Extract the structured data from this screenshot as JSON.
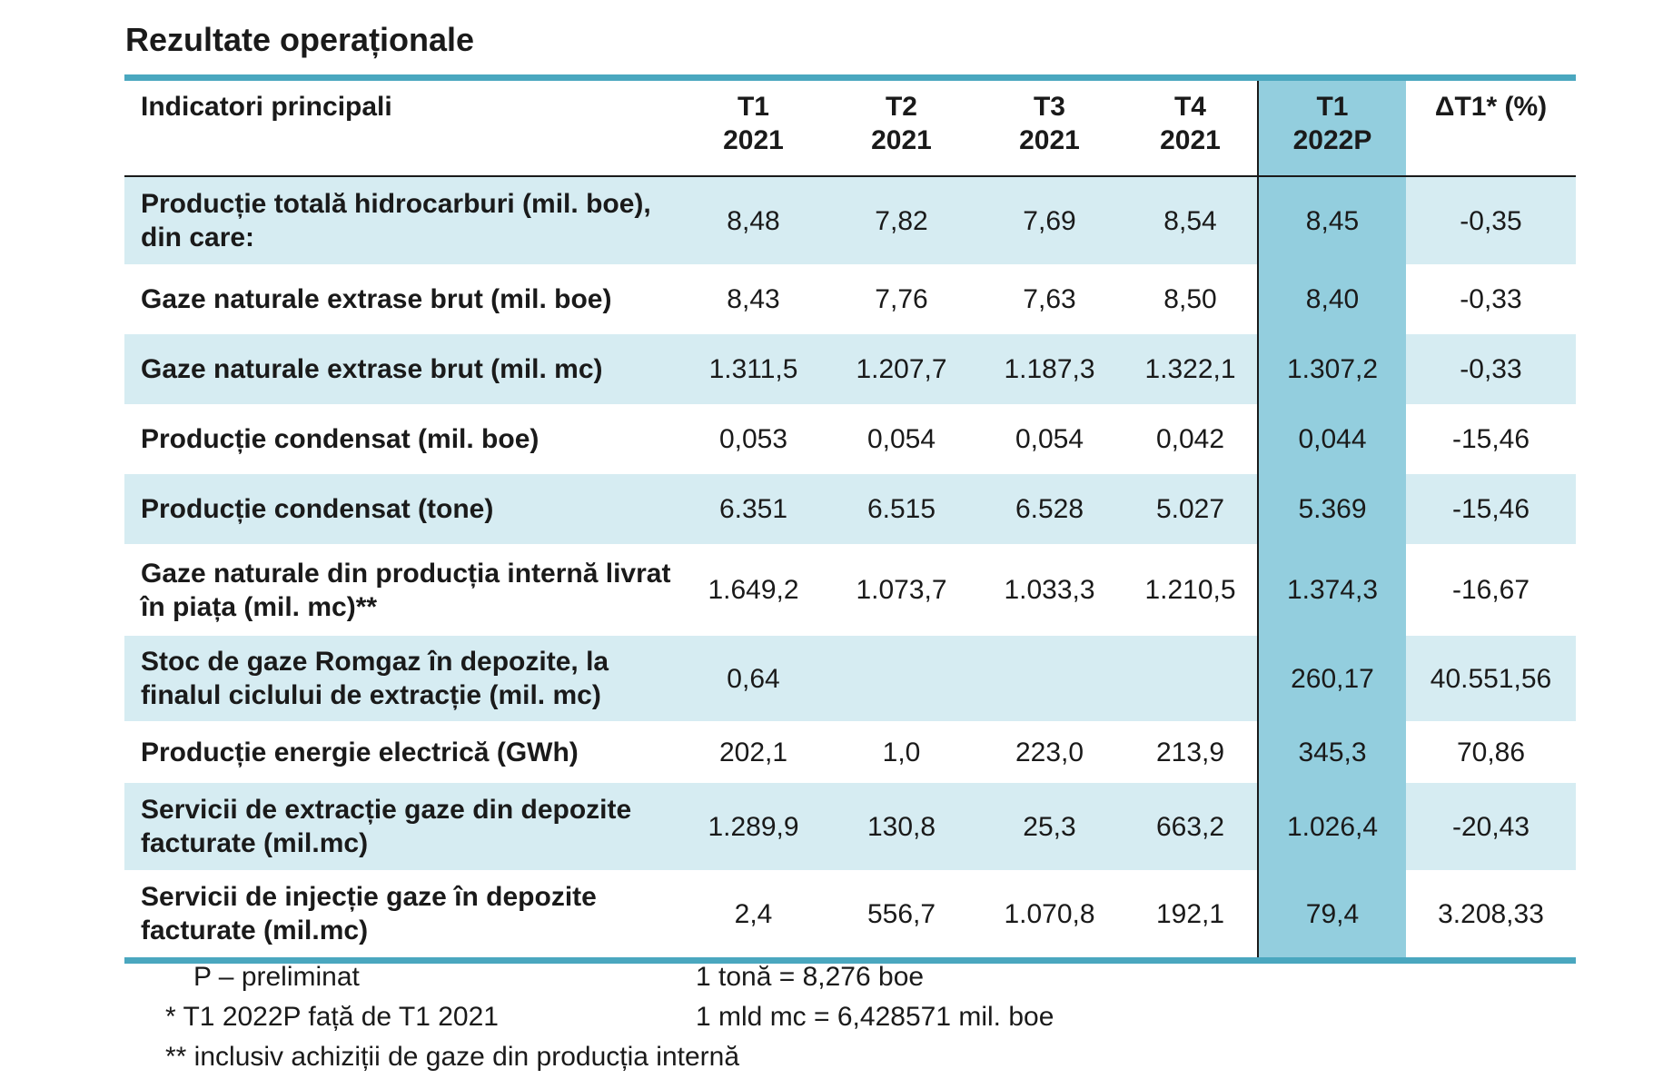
{
  "title": "Rezultate operaționale",
  "table": {
    "header": {
      "label": "Indicatori principali",
      "columns": [
        {
          "line1": "T1",
          "line2": "2021"
        },
        {
          "line1": "T2",
          "line2": "2021"
        },
        {
          "line1": "T3",
          "line2": "2021"
        },
        {
          "line1": "T4",
          "line2": "2021"
        },
        {
          "line1": "T1",
          "line2": "2022P"
        },
        {
          "line1": "ΔT1* (%)",
          "line2": ""
        }
      ]
    },
    "rows": [
      {
        "label": "Producție totală hidrocarburi (mil. boe), din care:",
        "values": [
          "8,48",
          "7,82",
          "7,69",
          "8,54",
          "8,45",
          "-0,35"
        ]
      },
      {
        "label": "Gaze naturale extrase brut (mil. boe)",
        "values": [
          "8,43",
          "7,76",
          "7,63",
          "8,50",
          "8,40",
          "-0,33"
        ]
      },
      {
        "label": "Gaze naturale extrase brut (mil. mc)",
        "values": [
          "1.311,5",
          "1.207,7",
          "1.187,3",
          "1.322,1",
          "1.307,2",
          "-0,33"
        ]
      },
      {
        "label": "Producție condensat (mil. boe)",
        "values": [
          "0,053",
          "0,054",
          "0,054",
          "0,042",
          "0,044",
          "-15,46"
        ]
      },
      {
        "label": "Producție condensat (tone)",
        "values": [
          "6.351",
          "6.515",
          "6.528",
          "5.027",
          "5.369",
          "-15,46"
        ]
      },
      {
        "label": "Gaze naturale din producția internă livrat în piața (mil. mc)**",
        "values": [
          "1.649,2",
          "1.073,7",
          "1.033,3",
          "1.210,5",
          "1.374,3",
          "-16,67"
        ]
      },
      {
        "label": "Stoc de gaze Romgaz în depozite, la finalul ciclului de extracție (mil. mc)",
        "values": [
          "0,64",
          "",
          "",
          "",
          "260,17",
          "40.551,56"
        ]
      },
      {
        "label": "Producție energie electrică (GWh)",
        "values": [
          "202,1",
          "1,0",
          "223,0",
          "213,9",
          "345,3",
          "70,86"
        ]
      },
      {
        "label": "Servicii de extracție gaze din depozite facturate (mil.mc)",
        "values": [
          "1.289,9",
          "130,8",
          "25,3",
          "663,2",
          "1.026,4",
          "-20,43"
        ]
      },
      {
        "label": "Servicii de injecție gaze în depozite facturate (mil.mc)",
        "values": [
          "2,4",
          "556,7",
          "1.070,8",
          "192,1",
          "79,4",
          "3.208,33"
        ]
      }
    ]
  },
  "footnotes": {
    "preliminary": "P – preliminat",
    "comparison": "* T1 2022P față de T1 2021",
    "acquisitions": "** inclusiv achiziții de gaze din producția internă",
    "ton_conversion": "1 tonă = 8,276 boe",
    "mc_conversion": "1 mld mc = 6,428571 mil. boe"
  }
}
